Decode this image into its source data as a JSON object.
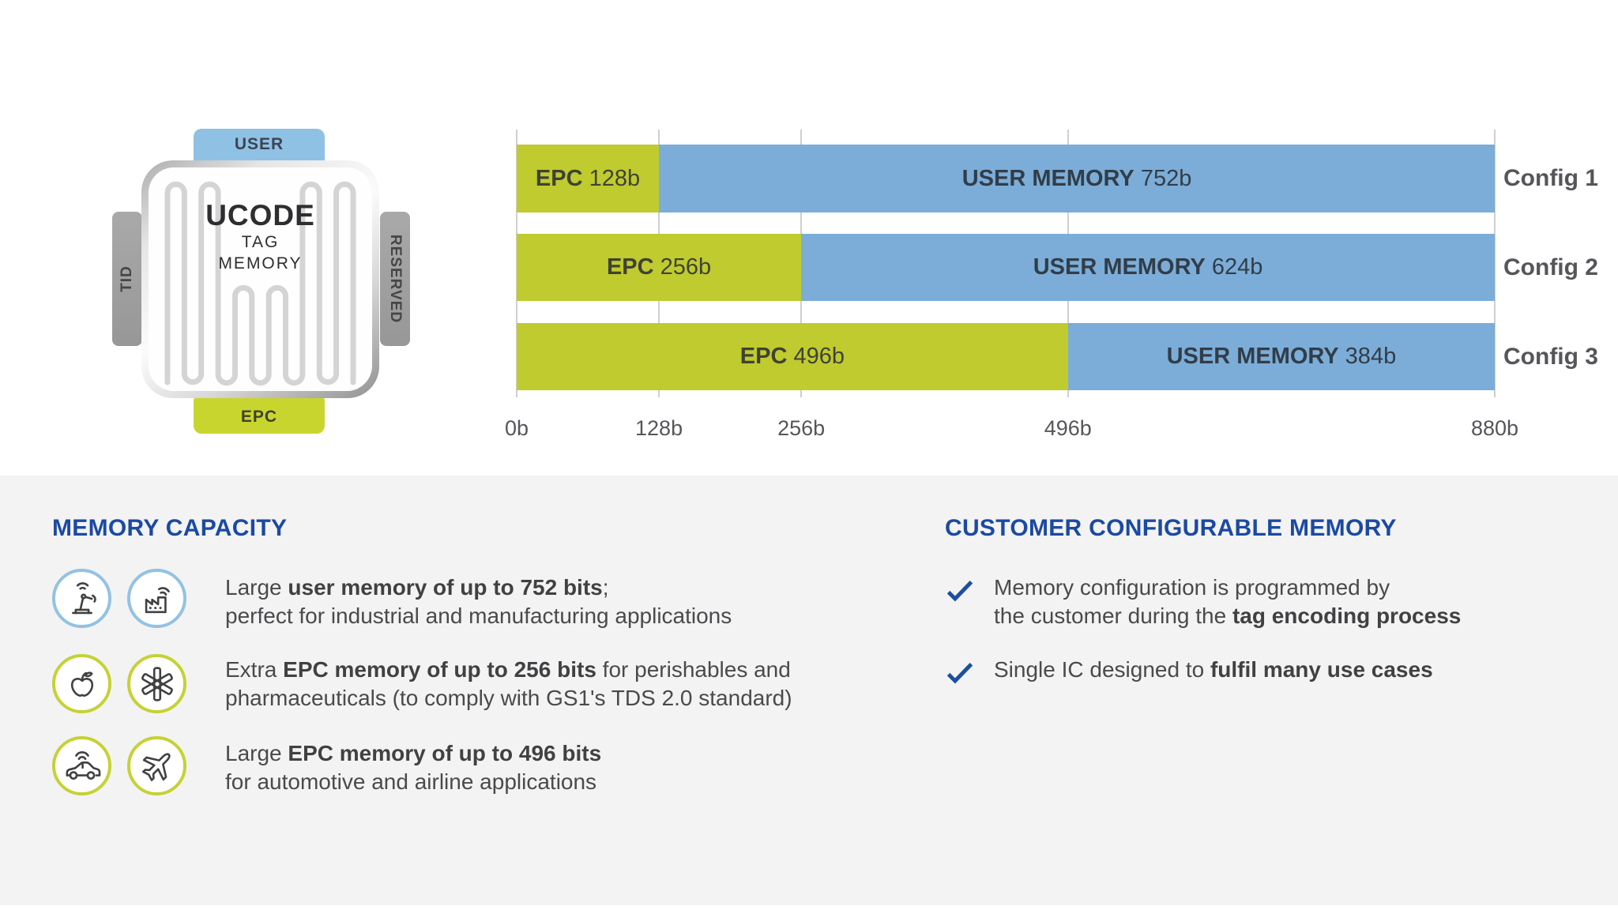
{
  "colors": {
    "bar_green": "#bfcb2e",
    "bar_blue": "#7badd8",
    "bar_green_text": "#3f4233",
    "bar_blue_text": "#323d48",
    "title_blue": "#1b4aa1",
    "check_blue": "#1d4f9f",
    "tab_blue": "#8fc1e5",
    "tab_green": "#c9d52f",
    "tab_gray": "#9f9f9f",
    "panel_gray": "#f3f3f4"
  },
  "chip": {
    "center": {
      "line1": "UCODE",
      "line2": "TAG",
      "line3": "MEMORY"
    },
    "tabs": {
      "top": "USER",
      "left": "TID",
      "right": "RESERVED",
      "bottom": "EPC"
    }
  },
  "chart_data": {
    "type": "bar",
    "stacked": true,
    "orientation": "horizontal",
    "unit": "bits",
    "categories": [
      "Config 1",
      "Config 2",
      "Config 3"
    ],
    "series": [
      {
        "name": "EPC",
        "color": "#bfcb2e",
        "text_color": "#3f4233",
        "values": [
          128,
          256,
          496
        ],
        "value_labels": [
          "128b",
          "256b",
          "496b"
        ]
      },
      {
        "name": "USER MEMORY",
        "color": "#7badd8",
        "text_color": "#323d48",
        "values": [
          752,
          624,
          384
        ],
        "value_labels": [
          "752b",
          "624b",
          "384b"
        ]
      }
    ],
    "x_ticks": [
      "0b",
      "128b",
      "256b",
      "496b",
      "880b"
    ],
    "x_tick_values": [
      0,
      128,
      256,
      496,
      880
    ],
    "xlim": [
      0,
      880
    ],
    "grid": true,
    "legend": "labels inside bars, category labels at right"
  },
  "memory_capacity": {
    "title": "MEMORY CAPACITY",
    "rows": [
      {
        "icons": [
          "robot-arm-icon",
          "factory-icon"
        ],
        "ring": "blue",
        "line1_pre": "Large ",
        "line1_bold": "user memory of up to 752 bits",
        "line1_post": ";",
        "line2": "perfect for industrial and manufacturing applications"
      },
      {
        "icons": [
          "apple-icon",
          "medical-star-icon"
        ],
        "ring": "green",
        "line1_pre": "Extra ",
        "line1_bold": "EPC memory of up to 256 bits",
        "line1_post": " for perishables and",
        "line2": "pharmaceuticals (to comply with GS1's TDS 2.0 standard)"
      },
      {
        "icons": [
          "car-icon",
          "airplane-icon"
        ],
        "ring": "green",
        "line1_pre": "Large ",
        "line1_bold": "EPC memory of up to 496 bits",
        "line1_post": "",
        "line2": "for automotive and airline applications"
      }
    ]
  },
  "customer_memory": {
    "title": "CUSTOMER CONFIGURABLE MEMORY",
    "items": [
      {
        "line1": "Memory configuration is programmed by",
        "line2_pre": "the customer during the ",
        "line2_bold": "tag encoding process"
      },
      {
        "line1_pre": "Single IC designed to ",
        "line1_bold": "fulfil many use cases"
      }
    ]
  }
}
